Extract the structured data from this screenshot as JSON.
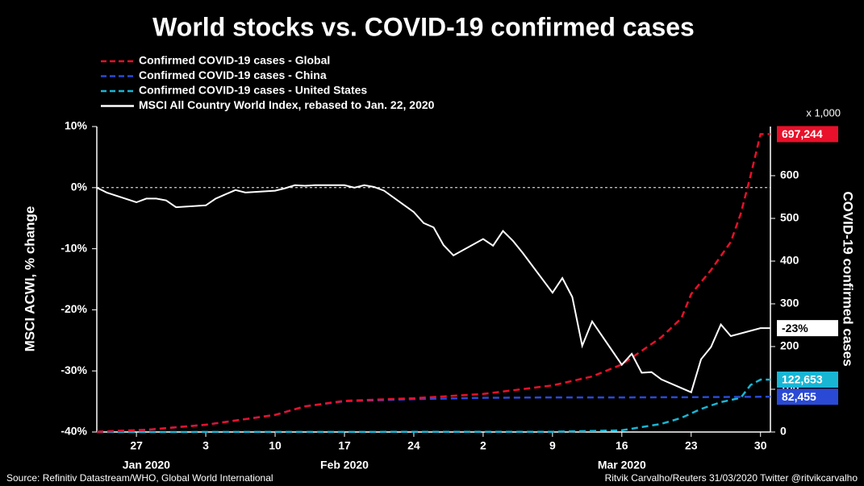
{
  "chart_data": {
    "type": "line",
    "title": "World stocks vs. COVID-19 confirmed cases",
    "y_label": "MSCI ACWI, % change",
    "y2_label": "COVID-19 confirmed cases",
    "y2_unit": "x 1,000",
    "source": "Source: Refinitiv Datastream/WHO, Global World International",
    "credit": "Ritvik Carvalho/Reuters 31/03/2020 Twitter @ritvikcarvalho",
    "xlim": [
      "2020-01-23",
      "2020-03-31"
    ],
    "xticks": [
      {
        "value": "2020-01-27",
        "label": "27"
      },
      {
        "value": "2020-02-03",
        "label": "3"
      },
      {
        "value": "2020-02-10",
        "label": "10"
      },
      {
        "value": "2020-02-17",
        "label": "17"
      },
      {
        "value": "2020-02-24",
        "label": "24"
      },
      {
        "value": "2020-03-02",
        "label": "2"
      },
      {
        "value": "2020-03-09",
        "label": "9"
      },
      {
        "value": "2020-03-16",
        "label": "16"
      },
      {
        "value": "2020-03-23",
        "label": "23"
      },
      {
        "value": "2020-03-30",
        "label": "30"
      }
    ],
    "x_groups": [
      {
        "value": "2020-01-28",
        "label": "Jan 2020"
      },
      {
        "value": "2020-02-17",
        "label": "Feb 2020"
      },
      {
        "value": "2020-03-16",
        "label": "Mar 2020"
      }
    ],
    "ylim": [
      -40,
      10
    ],
    "yticks": [
      {
        "value": 10,
        "label": "10%"
      },
      {
        "value": 0,
        "label": "0%"
      },
      {
        "value": -10,
        "label": "-10%"
      },
      {
        "value": -20,
        "label": "-20%"
      },
      {
        "value": -30,
        "label": "-30%"
      },
      {
        "value": -40,
        "label": "-40%"
      }
    ],
    "y2lim": [
      0,
      715
    ],
    "y2ticks": [
      0,
      100,
      200,
      300,
      400,
      500,
      600
    ],
    "reference_zero": true,
    "series": [
      {
        "name": "Confirmed COVID-19 cases - Global",
        "color": "#e8102a",
        "axis": "y2",
        "dash": true,
        "x": [
          "2020-01-23",
          "2020-01-28",
          "2020-02-03",
          "2020-02-10",
          "2020-02-13",
          "2020-02-17",
          "2020-02-24",
          "2020-03-02",
          "2020-03-09",
          "2020-03-13",
          "2020-03-16",
          "2020-03-18",
          "2020-03-20",
          "2020-03-22",
          "2020-03-23",
          "2020-03-25",
          "2020-03-27",
          "2020-03-28",
          "2020-03-29",
          "2020-03-30",
          "2020-03-31"
        ],
        "values": [
          0.6,
          5,
          17,
          40,
          60,
          73,
          79,
          89,
          109,
          130,
          158,
          190,
          222,
          266,
          323,
          379,
          445,
          511,
          600,
          697.244,
          697.244
        ],
        "value_labels": [
          null,
          null,
          null,
          null,
          null,
          null,
          null,
          null,
          null,
          null,
          null,
          null,
          null,
          null,
          null,
          null,
          null,
          null,
          null,
          null,
          "697,244"
        ]
      },
      {
        "name": "Confirmed COVID-19 cases - China",
        "color": "#2a4ad6",
        "axis": "y2",
        "dash": true,
        "x": [
          "2020-01-23",
          "2020-01-28",
          "2020-02-03",
          "2020-02-10",
          "2020-02-13",
          "2020-02-17",
          "2020-02-24",
          "2020-03-02",
          "2020-03-09",
          "2020-03-16",
          "2020-03-18",
          "2020-03-23",
          "2020-03-30",
          "2020-03-31"
        ],
        "values": [
          0.6,
          5,
          17,
          40,
          60,
          72,
          77,
          80,
          81,
          81,
          81.1,
          81.5,
          82.455,
          82.455
        ],
        "value_labels": [
          null,
          null,
          null,
          null,
          null,
          null,
          null,
          null,
          null,
          null,
          null,
          null,
          null,
          "82,455"
        ]
      },
      {
        "name": "Confirmed COVID-19 cases - United States",
        "color": "#19b6d4",
        "axis": "y2",
        "dash": true,
        "x": [
          "2020-01-23",
          "2020-03-09",
          "2020-03-16",
          "2020-03-20",
          "2020-03-22",
          "2020-03-24",
          "2020-03-26",
          "2020-03-28",
          "2020-03-29",
          "2020-03-30",
          "2020-03-31"
        ],
        "values": [
          0,
          0.5,
          4,
          19,
          33,
          54,
          70,
          80,
          110,
          122.653,
          122.653
        ],
        "value_labels": [
          null,
          null,
          null,
          null,
          null,
          null,
          null,
          null,
          null,
          null,
          "122,653"
        ]
      },
      {
        "name": "MSCI All Country World Index, rebased to Jan. 22, 2020",
        "color": "#ffffff",
        "axis": "y",
        "dash": false,
        "x": [
          "2020-01-23",
          "2020-01-24",
          "2020-01-27",
          "2020-01-28",
          "2020-01-29",
          "2020-01-30",
          "2020-01-31",
          "2020-02-03",
          "2020-02-04",
          "2020-02-05",
          "2020-02-06",
          "2020-02-07",
          "2020-02-10",
          "2020-02-11",
          "2020-02-12",
          "2020-02-13",
          "2020-02-14",
          "2020-02-17",
          "2020-02-18",
          "2020-02-19",
          "2020-02-20",
          "2020-02-21",
          "2020-02-24",
          "2020-02-25",
          "2020-02-26",
          "2020-02-27",
          "2020-02-28",
          "2020-03-02",
          "2020-03-03",
          "2020-03-04",
          "2020-03-05",
          "2020-03-06",
          "2020-03-09",
          "2020-03-10",
          "2020-03-11",
          "2020-03-12",
          "2020-03-13",
          "2020-03-16",
          "2020-03-17",
          "2020-03-18",
          "2020-03-19",
          "2020-03-20",
          "2020-03-23",
          "2020-03-24",
          "2020-03-25",
          "2020-03-26",
          "2020-03-27",
          "2020-03-30",
          "2020-03-31"
        ],
        "values": [
          0,
          -0.8,
          -2.4,
          -1.8,
          -1.8,
          -2.1,
          -3.2,
          -2.9,
          -1.8,
          -1.1,
          -0.4,
          -0.8,
          -0.5,
          -0.1,
          0.4,
          0.3,
          0.4,
          0.4,
          0,
          0.4,
          0.1,
          -0.5,
          -4.0,
          -5.8,
          -6.5,
          -9.4,
          -11.1,
          -8.4,
          -9.5,
          -7.1,
          -8.7,
          -10.7,
          -17.2,
          -14.8,
          -17.9,
          -25.9,
          -21.9,
          -29.0,
          -27.2,
          -30.3,
          -30.2,
          -31.4,
          -33.5,
          -28.1,
          -26.1,
          -22.4,
          -24.3,
          -23,
          -23
        ],
        "value_labels": [
          null,
          null,
          null,
          null,
          null,
          null,
          null,
          null,
          null,
          null,
          null,
          null,
          null,
          null,
          null,
          null,
          null,
          null,
          null,
          null,
          null,
          null,
          null,
          null,
          null,
          null,
          null,
          null,
          null,
          null,
          null,
          null,
          null,
          null,
          null,
          null,
          null,
          null,
          null,
          null,
          null,
          null,
          null,
          null,
          null,
          null,
          null,
          null,
          "-23%"
        ]
      }
    ]
  }
}
